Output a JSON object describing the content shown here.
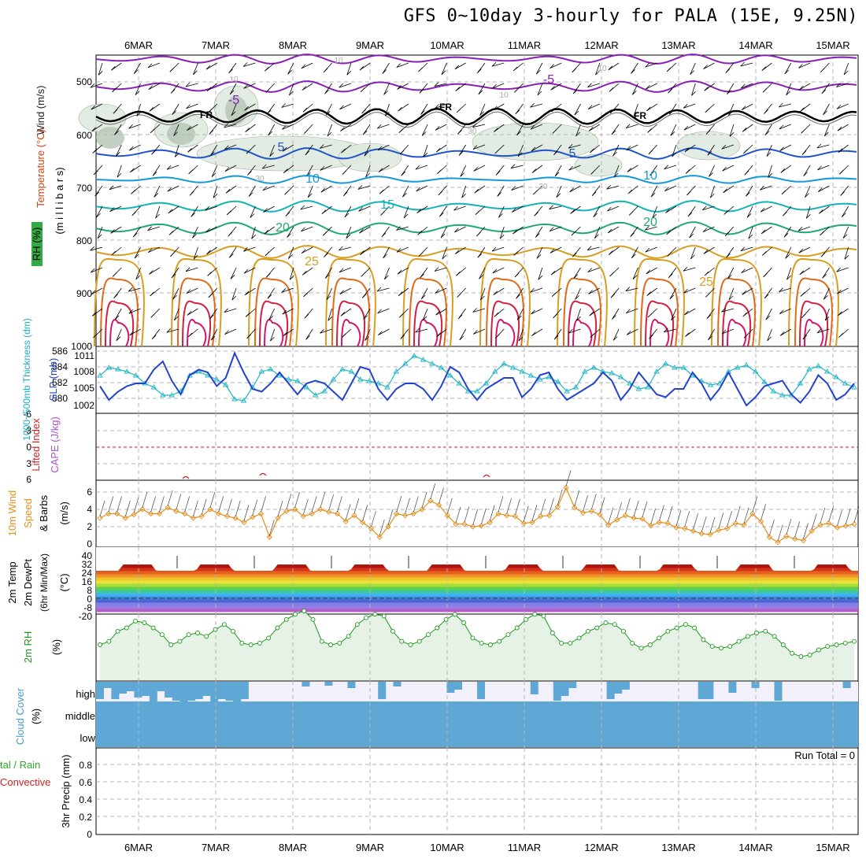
{
  "title": "GFS 0~10day 3-hourly for PALA (15E, 9.25N)",
  "dates": [
    "6MAR",
    "7MAR",
    "8MAR",
    "9MAR",
    "10MAR",
    "11MAR",
    "12MAR",
    "13MAR",
    "14MAR",
    "15MAR"
  ],
  "colors": {
    "grid": "#b4b4b4",
    "temp_purple": "#8a1fb5",
    "temp_blue": "#1f55c8",
    "temp_cyan": "#1499d9",
    "temp_teal": "#13b4b4",
    "temp_green": "#1faa6e",
    "temp_gold": "#d99e21",
    "temp_orange": "#e06a18",
    "temp_red": "#d0213e",
    "temp_magenta": "#d6146e",
    "freezing": "#000000",
    "slp": "#2244cc",
    "thickness": "#22b5c5",
    "wind10m": "#e58e1a",
    "rh2m": "#1a9a1a",
    "rh_fill": "#e6f2e6",
    "cloud": "#5fa8d6",
    "cloud_bg": "#f2f0fa",
    "lifted_index": "#d02020"
  },
  "labels": {
    "wind": "Wind (m/s)",
    "temperature": "Temperature (°C)",
    "millibars": "(m i l l i b a r s)",
    "rh": "RH (%)",
    "thickness": "1000~500mb Thickness (dm)",
    "slp": "SLP (mb)",
    "lifted_index": "Lifted Index",
    "cape": "CAPE (J/kg)",
    "wind10m_1": "10m Wind",
    "wind10m_2": "Speed",
    "wind10m_3": "& Barbs",
    "wind10m_unit": "(m/s)",
    "temp2m_1": "2m Temp",
    "temp2m_2": "2m DewPt",
    "temp2m_3": "(6hr Min/Max)",
    "temp2m_unit": "(°C)",
    "rh2m": "2m RH",
    "rh2m_unit": "(%)",
    "cloud": "Cloud Cover",
    "cloud_unit": "(%)",
    "cloud_high": "high",
    "cloud_middle": "middle",
    "cloud_low": "low",
    "precip_1": "tal / Rain",
    "precip_2": "Convective",
    "precip_3": "3hr Precip (mm)",
    "run_total": "Run Total = 0"
  },
  "chart_data": [
    {
      "type": "line",
      "panel": "pressure-level",
      "y_ticks": [
        "500",
        "600",
        "700",
        "800",
        "900",
        "1000"
      ],
      "isotherm_labels": [
        "-5",
        "-5",
        "5",
        "5",
        "10",
        "10",
        "15",
        "20",
        "20",
        "25",
        "25",
        "FR",
        "FR",
        "FR"
      ],
      "contour_labels": [
        "10",
        "30",
        "10",
        "10",
        "30",
        "10",
        "30"
      ]
    },
    {
      "type": "line",
      "panel": "thickness-slp",
      "thickness_ticks": [
        "586",
        "584",
        "582",
        "580"
      ],
      "slp_ticks": [
        "1011",
        "1008",
        "1005",
        "1002"
      ],
      "series": [
        {
          "name": "SLP (mb)",
          "values": [
            1005.5,
            1003,
            1004.5,
            1005.5,
            1006,
            1006,
            1008.5,
            1010,
            1006.5,
            1004,
            1007.5,
            1008.5,
            1008,
            1005.5,
            1007,
            1011.5,
            1008,
            1005,
            1004.5,
            1006,
            1008,
            1006,
            1004,
            1006,
            1006.5,
            1006,
            1004.5,
            1003,
            1006,
            1009,
            1008.5,
            1005,
            1003,
            1005,
            1006,
            1006,
            1005,
            1003,
            1005.5,
            1009,
            1008,
            1005,
            1003,
            1005,
            1006,
            1007,
            1007,
            1003.5,
            1005,
            1007.5,
            1008,
            1005,
            1003,
            1004,
            1005,
            1006,
            1008,
            1006.5,
            1003,
            1005,
            1008,
            1006,
            1004,
            1003.5,
            1005,
            1005,
            1008,
            1006,
            1003,
            1005,
            1008,
            1005,
            1002,
            1003.5,
            1005.5,
            1006,
            1006.5,
            1004,
            1002.5,
            1004.5,
            1007.5,
            1006,
            1003,
            1004,
            1006
          ]
        },
        {
          "name": "1000~500mb Thickness (dm)",
          "values": [
            583,
            584,
            583.8,
            583.5,
            583,
            582,
            581.5,
            580.5,
            580.5,
            581,
            583,
            583.5,
            583,
            582.5,
            581.8,
            580,
            579.8,
            581.5,
            583.5,
            583.8,
            583,
            582.5,
            582.3,
            581.5,
            580.5,
            581,
            582.5,
            583.8,
            583.5,
            582.5,
            582.3,
            582,
            581.5,
            583.5,
            584.5,
            585.5,
            585,
            584.5,
            584,
            583,
            582,
            581,
            581,
            582,
            583.5,
            584.5,
            584,
            583.5,
            583,
            582.5,
            582.8,
            582.2,
            581,
            581.5,
            583.5,
            584,
            583.5,
            583.3,
            582.8,
            582,
            581.3,
            581.5,
            583.5,
            584.5,
            584,
            584,
            583,
            582.3,
            581.8,
            582,
            583.5,
            584,
            584.3,
            583.5,
            582.2,
            581,
            580.5,
            580.5,
            582,
            583.8,
            584.2,
            583.5,
            582.8,
            582,
            581.5
          ]
        }
      ]
    },
    {
      "type": "line",
      "panel": "lifted-index-cape",
      "y_ticks": [
        "-6",
        "-3",
        "0",
        "3",
        "6"
      ]
    },
    {
      "type": "line",
      "panel": "wind10m",
      "y_ticks": [
        "0",
        "2",
        "4",
        "6"
      ],
      "series": [
        {
          "name": "Speed",
          "values": [
            3,
            3.5,
            3.5,
            3,
            3.4,
            4,
            3.5,
            3.5,
            4.2,
            3.8,
            3.5,
            3,
            3.2,
            4,
            3.5,
            3.2,
            3,
            2.5,
            3.1,
            3.5,
            0.8,
            3,
            3.8,
            4,
            3.2,
            3.5,
            4,
            3.7,
            3.5,
            2.6,
            3.3,
            2.5,
            1.8,
            0.8,
            2,
            3.5,
            3.3,
            3.5,
            4,
            5,
            4.5,
            3.3,
            2.3,
            2.3,
            2,
            2.1,
            2.5,
            3.5,
            3.3,
            3.2,
            2.4,
            2.5,
            3.2,
            3.3,
            4.3,
            6.5,
            4.2,
            3.6,
            3.8,
            3.4,
            2.2,
            2.8,
            3.3,
            3,
            2.9,
            2.1,
            2.5,
            2.4,
            1.9,
            1.8,
            1.5,
            1.2,
            1.1,
            1.6,
            1.8,
            2.4,
            2.2,
            3.5,
            2.6,
            0.8,
            0.2,
            0.9,
            0.6,
            0.4,
            1.5,
            2.2,
            2.4,
            1.9,
            2.1,
            2.3
          ]
        }
      ]
    },
    {
      "type": "area",
      "panel": "temp2m-dewpt",
      "y_ticks": [
        "40",
        "32",
        "24",
        "16",
        "8",
        "0",
        "-8",
        "-20"
      ]
    },
    {
      "type": "area",
      "panel": "rh2m",
      "series": [
        {
          "name": "2m RH",
          "values": [
            20,
            22,
            28,
            30,
            34,
            33,
            30,
            26,
            20,
            22,
            26,
            27,
            25,
            29,
            32,
            28,
            21,
            20,
            21,
            24,
            30,
            35,
            38,
            40,
            35,
            22,
            20,
            21,
            25,
            32,
            36,
            38,
            37,
            28,
            22,
            20,
            22,
            26,
            30,
            35,
            38,
            33,
            24,
            21,
            20,
            22,
            26,
            30,
            35,
            38,
            37,
            27,
            21,
            21,
            24,
            28,
            30,
            33,
            32,
            28,
            21,
            18,
            20,
            24,
            28,
            30,
            32,
            30,
            23,
            19,
            18,
            19,
            22,
            25,
            27,
            28,
            25,
            20,
            15,
            13,
            14,
            17,
            19,
            20,
            21,
            22
          ]
        }
      ]
    },
    {
      "type": "bar",
      "panel": "cloud-cover",
      "levels": [
        "high",
        "middle",
        "low"
      ]
    },
    {
      "type": "bar",
      "panel": "precip",
      "y_ticks": [
        "0",
        "0.2",
        "0.4",
        "0.6",
        "0.8"
      ],
      "values": [
        0
      ]
    }
  ]
}
